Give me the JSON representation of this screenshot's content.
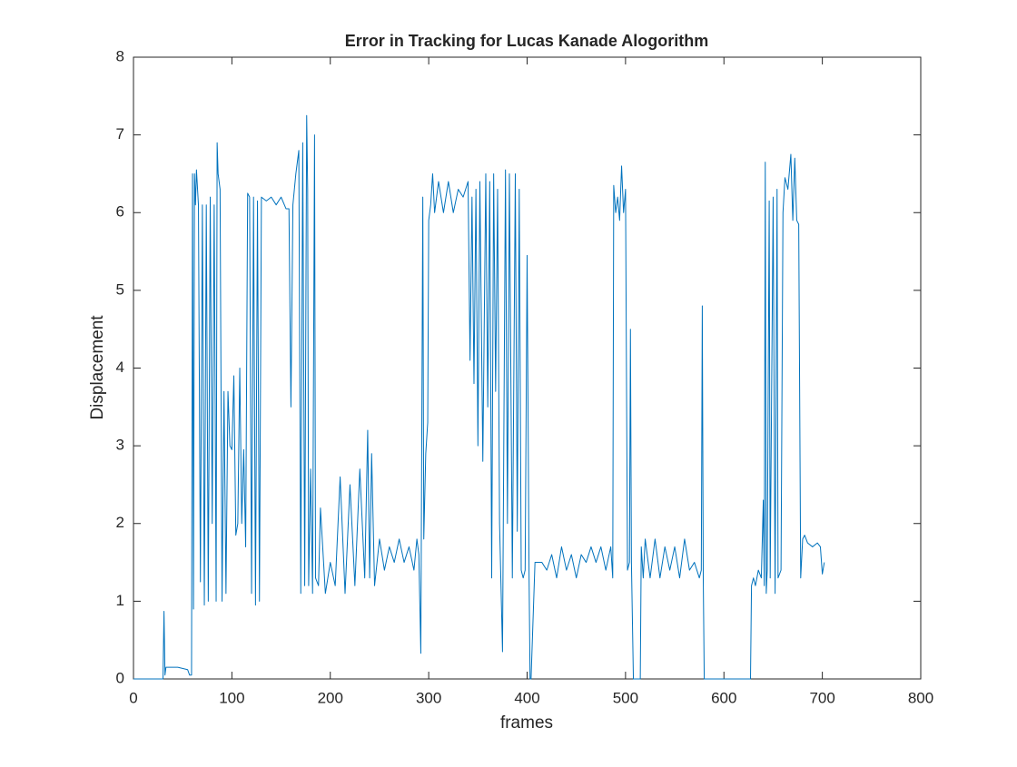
{
  "chart_data": {
    "type": "line",
    "title": "Error in Tracking for Lucas Kanade Alogorithm",
    "x_label": "frames",
    "y_label": "Displacement",
    "color": "#0072bd",
    "x": [
      0,
      30,
      31,
      32,
      33,
      45,
      55,
      57,
      59,
      60,
      61,
      62,
      63,
      64,
      66,
      68,
      70,
      72,
      74,
      76,
      78,
      80,
      82,
      84,
      85,
      86,
      88,
      90,
      92,
      94,
      96,
      98,
      100,
      102,
      104,
      106,
      108,
      110,
      112,
      114,
      116,
      118,
      120,
      122,
      124,
      126,
      128,
      130,
      135,
      140,
      145,
      150,
      155,
      158,
      160,
      162,
      165,
      168,
      170,
      172,
      174,
      176,
      177,
      178,
      180,
      182,
      184,
      185,
      188,
      190,
      195,
      200,
      205,
      210,
      215,
      220,
      225,
      230,
      235,
      238,
      240,
      242,
      245,
      250,
      255,
      260,
      265,
      270,
      275,
      280,
      285,
      288,
      290,
      292,
      294,
      295,
      297,
      299,
      300,
      302,
      304,
      306,
      310,
      315,
      320,
      325,
      330,
      335,
      340,
      342,
      344,
      346,
      348,
      350,
      352,
      355,
      358,
      360,
      362,
      364,
      366,
      368,
      370,
      372,
      375,
      378,
      380,
      382,
      385,
      388,
      390,
      392,
      394,
      396,
      398,
      400,
      402,
      403,
      404,
      408,
      410,
      415,
      420,
      425,
      430,
      435,
      440,
      445,
      450,
      455,
      460,
      465,
      470,
      475,
      480,
      485,
      487,
      488,
      490,
      492,
      494,
      496,
      498,
      500,
      502,
      504,
      505,
      506,
      508,
      515,
      516,
      518,
      520,
      525,
      530,
      535,
      540,
      545,
      550,
      555,
      560,
      565,
      570,
      575,
      577,
      578,
      579,
      580,
      627,
      628,
      630,
      632,
      635,
      638,
      640,
      641,
      642,
      643,
      644,
      646,
      647,
      650,
      652,
      654,
      655,
      658,
      660,
      662,
      665,
      668,
      670,
      672,
      674,
      676,
      678,
      680,
      682,
      685,
      690,
      695,
      698,
      700,
      702
    ],
    "values": [
      0,
      0,
      0.87,
      0.05,
      0.15,
      0.15,
      0.12,
      0.05,
      0.05,
      6.5,
      0.9,
      6.5,
      6.1,
      6.55,
      6.1,
      1.25,
      6.1,
      0.95,
      6.1,
      1.0,
      6.2,
      2.0,
      6.1,
      1.0,
      6.9,
      6.5,
      6.3,
      1.0,
      3.7,
      1.1,
      3.7,
      3.0,
      2.95,
      3.9,
      1.85,
      2.0,
      4.0,
      2.0,
      2.95,
      1.7,
      6.25,
      6.2,
      1.1,
      6.2,
      0.95,
      6.15,
      1.0,
      6.2,
      6.15,
      6.2,
      6.1,
      6.2,
      6.05,
      6.05,
      3.5,
      6.1,
      6.5,
      6.8,
      1.1,
      6.9,
      1.2,
      7.25,
      6.3,
      1.2,
      2.7,
      1.1,
      7.0,
      1.3,
      1.2,
      2.2,
      1.1,
      1.5,
      1.2,
      2.6,
      1.1,
      2.5,
      1.2,
      2.7,
      1.3,
      3.2,
      1.3,
      2.9,
      1.2,
      1.8,
      1.4,
      1.7,
      1.5,
      1.8,
      1.5,
      1.7,
      1.4,
      1.8,
      1.6,
      0.33,
      6.2,
      1.8,
      2.9,
      3.3,
      5.9,
      6.1,
      6.5,
      6.0,
      6.4,
      6.0,
      6.4,
      6.0,
      6.3,
      6.2,
      6.4,
      4.1,
      6.2,
      3.8,
      6.3,
      3.0,
      6.4,
      2.8,
      6.5,
      3.5,
      6.4,
      1.3,
      6.5,
      3.7,
      6.3,
      2.0,
      0.35,
      6.55,
      2.0,
      6.5,
      1.3,
      6.5,
      1.9,
      6.3,
      1.4,
      1.3,
      1.4,
      5.45,
      1.3,
      0,
      0,
      1.5,
      1.5,
      1.5,
      1.4,
      1.6,
      1.3,
      1.7,
      1.4,
      1.6,
      1.3,
      1.6,
      1.5,
      1.7,
      1.5,
      1.7,
      1.4,
      1.7,
      1.3,
      6.35,
      6.0,
      6.2,
      5.9,
      6.6,
      6.0,
      6.3,
      1.4,
      1.5,
      4.5,
      1.5,
      0,
      0,
      1.7,
      1.3,
      1.8,
      1.3,
      1.8,
      1.3,
      1.7,
      1.4,
      1.7,
      1.3,
      1.8,
      1.4,
      1.5,
      1.3,
      1.4,
      4.8,
      1.3,
      0,
      0,
      1.2,
      1.3,
      1.2,
      1.4,
      1.3,
      2.3,
      1.2,
      6.65,
      1.1,
      1.4,
      6.15,
      1.3,
      6.2,
      1.1,
      6.3,
      1.3,
      1.4,
      6.0,
      6.45,
      6.3,
      6.75,
      5.9,
      6.7,
      5.9,
      5.85,
      1.3,
      1.8,
      1.85,
      1.75,
      1.7,
      1.75,
      1.7,
      1.35,
      1.5
    ],
    "xlim": [
      0,
      800
    ],
    "xticks": [
      0,
      100,
      200,
      300,
      400,
      500,
      600,
      700,
      800
    ],
    "ylim": [
      0,
      8
    ],
    "yticks": [
      0,
      1,
      2,
      3,
      4,
      5,
      6,
      7,
      8
    ]
  }
}
